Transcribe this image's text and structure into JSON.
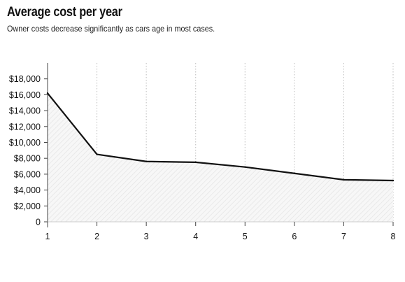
{
  "title": "Average cost per year",
  "subtitle": "Owner costs decrease significantly as cars age in most cases.",
  "colors": {
    "line": "#111111",
    "area_hatch": "#e6e6e6",
    "area_fill": "#f7f7f7",
    "grid": "#bdbdbd",
    "axis": "#444444"
  },
  "chart_data": {
    "type": "area",
    "title": "Average cost per year",
    "subtitle": "Owner costs decrease significantly as cars age in most cases.",
    "xlabel": "",
    "ylabel": "",
    "x": [
      1,
      2,
      3,
      4,
      5,
      6,
      7,
      8
    ],
    "series": [
      {
        "values": [
          16200,
          8500,
          7600,
          7500,
          6900,
          6100,
          5300,
          5200
        ]
      }
    ],
    "xlim": [
      1,
      8
    ],
    "ylim": [
      0,
      20000
    ],
    "x_ticks": [
      "1",
      "2",
      "3",
      "4",
      "5",
      "6",
      "7",
      "8"
    ],
    "y_ticks": [
      0,
      2000,
      4000,
      6000,
      8000,
      10000,
      12000,
      14000,
      16000,
      18000
    ],
    "y_tick_labels": [
      "0",
      "$2,000",
      "$4,000",
      "$6,000",
      "$8,000",
      "$10,000",
      "$12,000",
      "$14,000",
      "$16,000",
      "$18,000"
    ],
    "grid": "vertical-dotted",
    "legend": "none"
  }
}
